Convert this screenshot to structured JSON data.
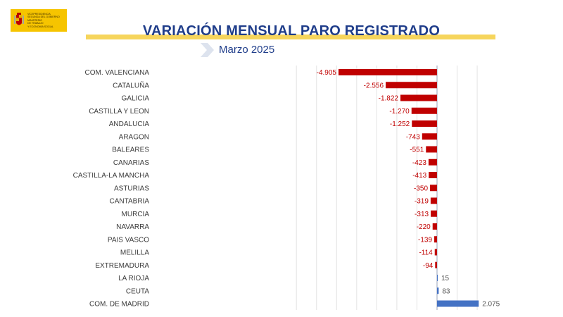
{
  "header": {
    "logo_lines": [
      "VICEPRESIDENCIA",
      "SEGUNDA DEL GOBIERNO",
      "MINISTERIO",
      "DE TRABAJO",
      "Y ECONOMÍA SOCIAL"
    ],
    "title": "VARIACIÓN MENSUAL PARO REGISTRADO",
    "subtitle": "Marzo 2025"
  },
  "colors": {
    "negative": "#c00000",
    "positive": "#4472c4",
    "title": "#1f3d8a",
    "accent_yellow": "#f6d55c"
  },
  "chart_data": {
    "type": "bar",
    "orientation": "horizontal",
    "categories": [
      "COM. VALENCIANA",
      "CATALUÑA",
      "GALICIA",
      "CASTILLA Y LEON",
      "ANDALUCIA",
      "ARAGON",
      "BALEARES",
      "CANARIAS",
      "CASTILLA-LA MANCHA",
      "ASTURIAS",
      "CANTABRIA",
      "MURCIA",
      "NAVARRA",
      "PAIS VASCO",
      "MELILLA",
      "EXTREMADURA",
      "LA RIOJA",
      "CEUTA",
      "COM. DE MADRID"
    ],
    "values": [
      -4905,
      -2556,
      -1822,
      -1270,
      -1252,
      -743,
      -551,
      -423,
      -413,
      -350,
      -319,
      -313,
      -220,
      -139,
      -114,
      -94,
      15,
      83,
      2075
    ],
    "labels": [
      "-4.905",
      "-2.556",
      "-1.822",
      "-1.270",
      "-1.252",
      "-743",
      "-551",
      "-423",
      "-413",
      "-350",
      "-319",
      "-313",
      "-220",
      "-139",
      "-114",
      "-94",
      "15",
      "83",
      "2.075"
    ],
    "xlim": [
      -5500,
      2500
    ],
    "gridlines_vertical": true
  }
}
